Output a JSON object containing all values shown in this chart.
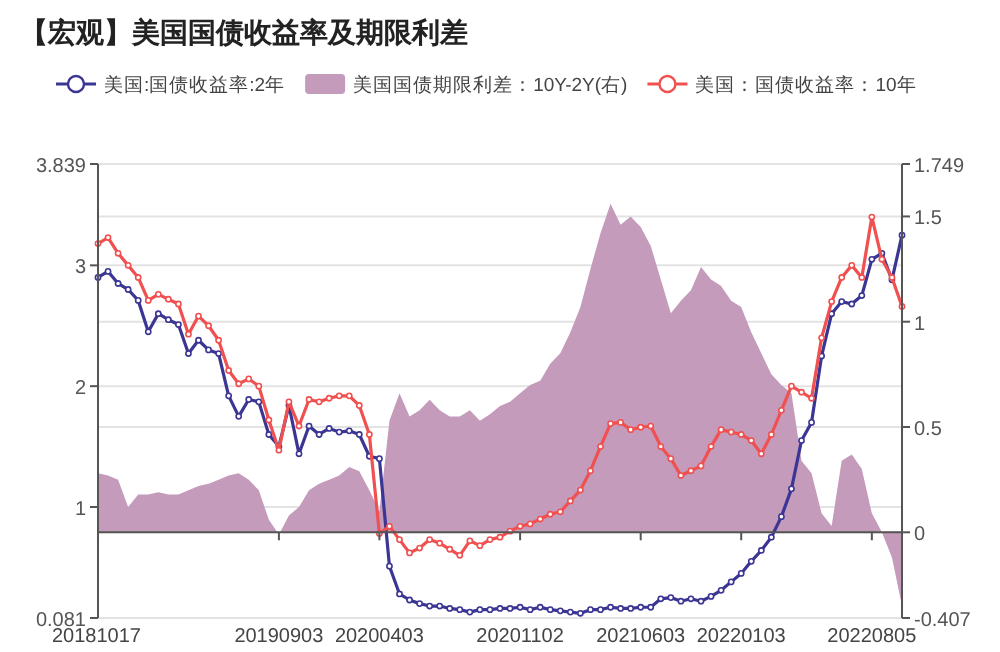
{
  "chart_data": {
    "type": "line",
    "title": "【宏观】美国国债收益率及期限利差",
    "categories": [
      "20181017",
      null,
      null,
      null,
      null,
      null,
      null,
      null,
      null,
      null,
      null,
      null,
      null,
      null,
      null,
      null,
      null,
      null,
      "20190903",
      null,
      null,
      null,
      null,
      null,
      null,
      null,
      null,
      null,
      "20200403",
      null,
      null,
      null,
      null,
      null,
      null,
      null,
      null,
      null,
      null,
      null,
      null,
      null,
      "20201102",
      null,
      null,
      null,
      null,
      null,
      null,
      null,
      null,
      null,
      null,
      null,
      "20210603",
      null,
      null,
      null,
      null,
      null,
      null,
      null,
      null,
      null,
      "20220103",
      null,
      null,
      null,
      null,
      null,
      null,
      null,
      null,
      null,
      null,
      null,
      null,
      "20220805",
      null,
      null,
      null
    ],
    "series": [
      {
        "name": "美国:国债收益率:2年",
        "color": "#3b3593",
        "marker": "circle",
        "values": [
          2.9,
          2.95,
          2.85,
          2.8,
          2.71,
          2.45,
          2.6,
          2.55,
          2.51,
          2.27,
          2.38,
          2.3,
          2.27,
          1.92,
          1.75,
          1.89,
          1.87,
          1.6,
          1.5,
          1.84,
          1.44,
          1.67,
          1.6,
          1.65,
          1.62,
          1.63,
          1.6,
          1.42,
          1.4,
          0.51,
          0.28,
          0.23,
          0.2,
          0.18,
          0.18,
          0.16,
          0.15,
          0.13,
          0.15,
          0.15,
          0.16,
          0.16,
          0.17,
          0.15,
          0.17,
          0.15,
          0.14,
          0.13,
          0.12,
          0.15,
          0.15,
          0.17,
          0.16,
          0.16,
          0.17,
          0.17,
          0.24,
          0.25,
          0.22,
          0.24,
          0.22,
          0.26,
          0.31,
          0.38,
          0.45,
          0.55,
          0.64,
          0.75,
          0.92,
          1.15,
          1.55,
          1.7,
          2.25,
          2.6,
          2.7,
          2.68,
          2.75,
          3.05,
          3.1,
          2.88,
          3.25
        ]
      },
      {
        "name": "美国国债期限利差：10Y-2Y(右)",
        "type": "area",
        "axis": "y2",
        "color": "#c49bbb",
        "values": [
          0.28,
          0.27,
          0.25,
          0.12,
          0.18,
          0.18,
          0.19,
          0.18,
          0.18,
          0.2,
          0.22,
          0.23,
          0.25,
          0.27,
          0.28,
          0.25,
          0.2,
          0.06,
          -0.01,
          0.08,
          0.12,
          0.2,
          0.23,
          0.25,
          0.27,
          0.31,
          0.29,
          0.2,
          0.1,
          0.53,
          0.66,
          0.55,
          0.58,
          0.63,
          0.58,
          0.55,
          0.55,
          0.58,
          0.53,
          0.56,
          0.6,
          0.62,
          0.66,
          0.7,
          0.72,
          0.8,
          0.85,
          0.95,
          1.07,
          1.25,
          1.42,
          1.56,
          1.46,
          1.5,
          1.45,
          1.36,
          1.2,
          1.04,
          1.1,
          1.15,
          1.26,
          1.2,
          1.17,
          1.1,
          1.07,
          0.95,
          0.85,
          0.75,
          0.7,
          0.66,
          0.34,
          0.28,
          0.09,
          0.03,
          0.34,
          0.37,
          0.3,
          0.09,
          0.0,
          -0.12,
          -0.35
        ]
      },
      {
        "name": "美国：国债收益率：10年",
        "color": "#f0504f",
        "marker": "circle",
        "values": [
          3.18,
          3.23,
          3.1,
          3.0,
          2.9,
          2.71,
          2.76,
          2.72,
          2.68,
          2.43,
          2.58,
          2.5,
          2.38,
          2.13,
          2.02,
          2.06,
          2.0,
          1.72,
          1.47,
          1.87,
          1.67,
          1.89,
          1.87,
          1.9,
          1.92,
          1.92,
          1.84,
          1.6,
          0.78,
          0.84,
          0.73,
          0.62,
          0.66,
          0.73,
          0.7,
          0.65,
          0.6,
          0.72,
          0.68,
          0.73,
          0.75,
          0.8,
          0.84,
          0.86,
          0.9,
          0.94,
          0.96,
          1.05,
          1.14,
          1.3,
          1.5,
          1.69,
          1.7,
          1.64,
          1.66,
          1.67,
          1.5,
          1.4,
          1.26,
          1.3,
          1.34,
          1.5,
          1.64,
          1.62,
          1.6,
          1.55,
          1.44,
          1.6,
          1.8,
          2.0,
          1.95,
          1.9,
          2.4,
          2.7,
          2.9,
          3.0,
          2.9,
          3.4,
          3.05,
          2.9,
          2.66
        ]
      }
    ],
    "ylim": [
      0.081,
      3.839
    ],
    "yticks": [
      0.081,
      1,
      2,
      3,
      3.839
    ],
    "y2lim": [
      -0.407,
      1.749
    ],
    "y2ticks": [
      -0.407,
      0,
      0.5,
      1,
      1.5,
      1.749
    ],
    "grid": "y",
    "legend": "top",
    "line_style": "solid"
  }
}
